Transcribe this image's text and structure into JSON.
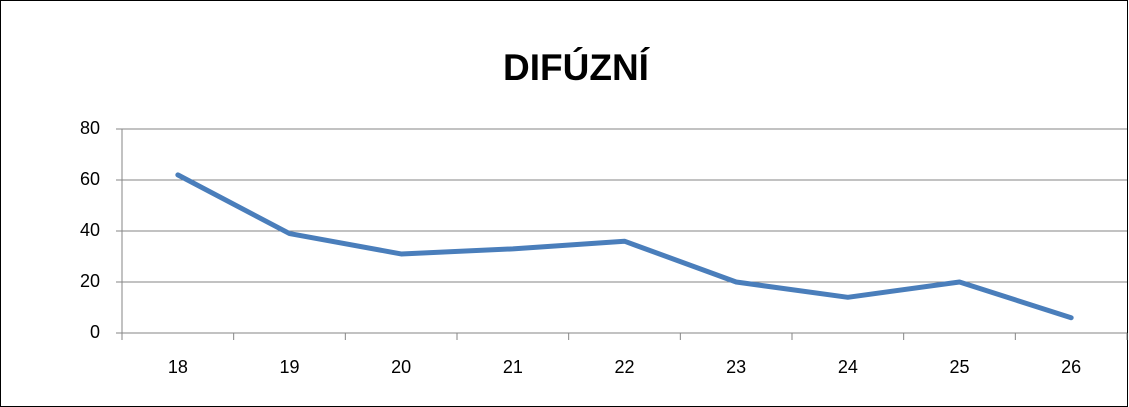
{
  "chart_data": {
    "type": "line",
    "title": "DIFÚZNÍ",
    "categories": [
      "18",
      "19",
      "20",
      "21",
      "22",
      "23",
      "24",
      "25",
      "26"
    ],
    "series": [
      {
        "name": "DIFÚZNÍ",
        "color": "#4a7ebb",
        "values": [
          62,
          39,
          31,
          33,
          36,
          20,
          14,
          20,
          6
        ]
      }
    ],
    "ylim": [
      0,
      80
    ],
    "yticks": [
      0,
      20,
      40,
      60,
      80
    ],
    "grid": true
  }
}
